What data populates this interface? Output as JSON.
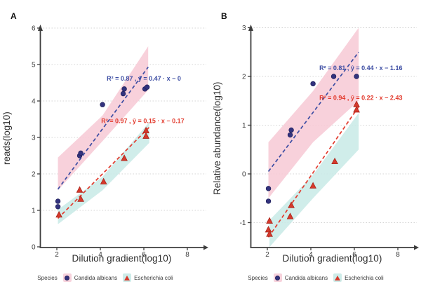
{
  "colors": {
    "candida_point": "#33337e",
    "candida_point_stroke": "#22225e",
    "candida_line": "#3c4da3",
    "candida_text": "#3c4da3",
    "candida_band": "#f7cbd6",
    "ecoli_point": "#d6392c",
    "ecoli_point_stroke": "#a8241a",
    "ecoli_line": "#e23b2e",
    "ecoli_text": "#e23b2e",
    "ecoli_band": "#c9ebe7",
    "axis": "#3d3d3d",
    "grid": "#d4d4d4",
    "tick_label": "#3a3a3a",
    "title": "#2d2d2d"
  },
  "chart_data": [
    {
      "type": "scatter",
      "label": "A",
      "xlabel": "Dilution gradient(log10)",
      "ylabel": "reads(log10)",
      "xticks": [
        2,
        4,
        6,
        8
      ],
      "yticks": [
        0,
        1,
        2,
        3,
        4,
        5,
        6
      ],
      "xlim": [
        1.2,
        8.6
      ],
      "ylim": [
        0,
        6.15
      ],
      "grid": "dotted-horizontal",
      "legend": {
        "title": "Species",
        "entries": [
          {
            "label": "Candida albicans",
            "marker": "circle"
          },
          {
            "label": "Escherichia coli",
            "marker": "triangle"
          }
        ]
      },
      "series": [
        {
          "name": "Candida albicans",
          "marker": "circle",
          "annotation": {
            "text": "R² = 0.87 , ŷ = 0.47 · x − 0",
            "x": 6.0,
            "y": 4.62
          },
          "trend": {
            "x1": 2.05,
            "y1": 1.58,
            "x2": 6.2,
            "y2": 4.93
          },
          "band": [
            [
              2.05,
              1.55
            ],
            [
              4.1,
              2.9
            ],
            [
              6.2,
              4.3
            ],
            [
              6.2,
              5.5
            ],
            [
              4.1,
              3.6
            ],
            [
              2.05,
              2.45
            ]
          ],
          "points": [
            [
              2.05,
              1.1
            ],
            [
              2.05,
              1.25
            ],
            [
              3.05,
              2.5
            ],
            [
              3.1,
              2.57
            ],
            [
              4.1,
              3.9
            ],
            [
              5.05,
              4.2
            ],
            [
              5.1,
              4.33
            ],
            [
              6.05,
              4.33
            ],
            [
              6.15,
              4.38
            ]
          ]
        },
        {
          "name": "Escherichia coli",
          "marker": "triangle",
          "annotation": {
            "text": "R² = 0.97 , ŷ = 0.15 · x − 0.17",
            "x": 5.95,
            "y": 3.45
          },
          "trend": {
            "x1": 2.05,
            "y1": 0.78,
            "x2": 6.25,
            "y2": 3.28
          },
          "band": [
            [
              2.05,
              0.62
            ],
            [
              4.1,
              1.55
            ],
            [
              6.25,
              2.85
            ],
            [
              6.25,
              3.42
            ],
            [
              4.1,
              1.92
            ],
            [
              2.05,
              1.02
            ]
          ],
          "points": [
            [
              2.1,
              0.87
            ],
            [
              3.05,
              1.55
            ],
            [
              3.1,
              1.3
            ],
            [
              4.15,
              1.78
            ],
            [
              5.1,
              2.42
            ],
            [
              6.1,
              3.03
            ],
            [
              6.1,
              3.18
            ]
          ]
        }
      ]
    },
    {
      "type": "scatter",
      "label": "B",
      "xlabel": "Dilution gradient(log10)",
      "ylabel": "Relative abundance(log10)",
      "xticks": [
        2,
        4,
        6,
        8
      ],
      "yticks": [
        -1,
        0,
        1,
        2,
        3
      ],
      "xlim": [
        1.2,
        8.6
      ],
      "ylim": [
        -1.55,
        3.1
      ],
      "grid": "dotted-horizontal",
      "legend": {
        "title": "Species",
        "entries": [
          {
            "label": "Candida albicans",
            "marker": "circle"
          },
          {
            "label": "Escherichia coli",
            "marker": "triangle"
          }
        ]
      },
      "series": [
        {
          "name": "Candida albicans",
          "marker": "circle",
          "annotation": {
            "text": "R² = 0.81 , ŷ = 0.44 · x − 1.16",
            "x": 6.3,
            "y": 2.17
          },
          "trend": {
            "x1": 2.05,
            "y1": 0.05,
            "x2": 6.2,
            "y2": 2.5
          },
          "band": [
            [
              2.05,
              -0.5
            ],
            [
              4.1,
              0.65
            ],
            [
              6.2,
              1.5
            ],
            [
              6.2,
              3.0
            ],
            [
              4.1,
              1.7
            ],
            [
              2.05,
              0.65
            ]
          ],
          "points": [
            [
              2.05,
              -0.3
            ],
            [
              2.05,
              -0.56
            ],
            [
              3.05,
              0.8
            ],
            [
              3.1,
              0.9
            ],
            [
              4.1,
              1.85
            ],
            [
              5.05,
              2.0
            ],
            [
              6.1,
              2.0
            ]
          ]
        },
        {
          "name": "Escherichia coli",
          "marker": "triangle",
          "annotation": {
            "text": "R² = 0.94 , ŷ = 0.22 · x − 2.43",
            "x": 6.3,
            "y": 1.56
          },
          "trend": {
            "x1": 2.05,
            "y1": -1.3,
            "x2": 6.2,
            "y2": 1.38
          },
          "band": [
            [
              2.1,
              -1.5
            ],
            [
              4.1,
              -0.5
            ],
            [
              6.2,
              0.5
            ],
            [
              6.2,
              1.25
            ],
            [
              4.1,
              -0.02
            ],
            [
              2.1,
              -0.95
            ]
          ],
          "points": [
            [
              2.1,
              -0.97
            ],
            [
              2.05,
              -1.15
            ],
            [
              2.1,
              -1.24
            ],
            [
              3.1,
              -0.65
            ],
            [
              3.05,
              -0.88
            ],
            [
              4.1,
              -0.25
            ],
            [
              5.1,
              0.25
            ],
            [
              6.1,
              1.31
            ],
            [
              6.1,
              1.42
            ]
          ]
        }
      ]
    }
  ]
}
